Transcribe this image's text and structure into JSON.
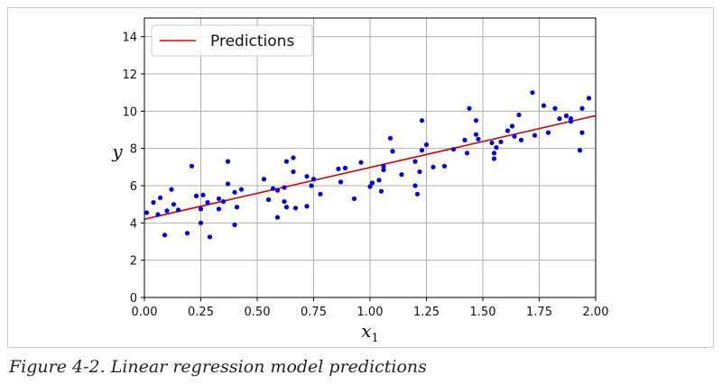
{
  "caption": "Figure 4-2. Linear regression model predictions",
  "chart_data": {
    "type": "scatter",
    "xlabel": "x",
    "xlabel_subscript": "1",
    "ylabel": "y",
    "xlim": [
      0,
      2
    ],
    "ylim": [
      0,
      15
    ],
    "xticks": [
      "0.00",
      "0.25",
      "0.50",
      "0.75",
      "1.00",
      "1.25",
      "1.50",
      "1.75",
      "2.00"
    ],
    "xtick_values": [
      0,
      0.25,
      0.5,
      0.75,
      1.0,
      1.25,
      1.5,
      1.75,
      2.0
    ],
    "yticks": [
      "0",
      "2",
      "4",
      "6",
      "8",
      "10",
      "12",
      "14"
    ],
    "ytick_values": [
      0,
      2,
      4,
      6,
      8,
      10,
      12,
      14
    ],
    "grid": true,
    "legend_position": "top-left",
    "series": [
      {
        "name": "",
        "kind": "scatter",
        "color": "#0000ee",
        "points": [
          [
            0.01,
            4.55
          ],
          [
            0.04,
            5.1
          ],
          [
            0.06,
            4.45
          ],
          [
            0.07,
            5.35
          ],
          [
            0.09,
            3.35
          ],
          [
            0.1,
            4.65
          ],
          [
            0.12,
            5.8
          ],
          [
            0.13,
            5.0
          ],
          [
            0.15,
            4.7
          ],
          [
            0.19,
            3.45
          ],
          [
            0.21,
            7.05
          ],
          [
            0.23,
            5.45
          ],
          [
            0.25,
            4.75
          ],
          [
            0.25,
            4.0
          ],
          [
            0.26,
            5.5
          ],
          [
            0.28,
            5.1
          ],
          [
            0.29,
            3.25
          ],
          [
            0.33,
            4.75
          ],
          [
            0.33,
            5.3
          ],
          [
            0.35,
            5.15
          ],
          [
            0.37,
            6.1
          ],
          [
            0.37,
            7.3
          ],
          [
            0.4,
            5.65
          ],
          [
            0.4,
            3.9
          ],
          [
            0.41,
            4.85
          ],
          [
            0.43,
            5.8
          ],
          [
            0.53,
            6.35
          ],
          [
            0.55,
            5.25
          ],
          [
            0.57,
            5.85
          ],
          [
            0.59,
            4.3
          ],
          [
            0.59,
            5.75
          ],
          [
            0.62,
            5.15
          ],
          [
            0.62,
            5.9
          ],
          [
            0.63,
            4.85
          ],
          [
            0.63,
            7.3
          ],
          [
            0.66,
            6.75
          ],
          [
            0.66,
            7.5
          ],
          [
            0.67,
            4.8
          ],
          [
            0.72,
            6.5
          ],
          [
            0.72,
            4.9
          ],
          [
            0.74,
            6.0
          ],
          [
            0.75,
            6.35
          ],
          [
            0.78,
            5.55
          ],
          [
            0.86,
            6.9
          ],
          [
            0.87,
            6.2
          ],
          [
            0.89,
            6.95
          ],
          [
            0.93,
            5.3
          ],
          [
            0.96,
            7.25
          ],
          [
            1.0,
            5.95
          ],
          [
            1.01,
            6.15
          ],
          [
            1.04,
            6.3
          ],
          [
            1.05,
            5.7
          ],
          [
            1.06,
            7.05
          ],
          [
            1.06,
            6.85
          ],
          [
            1.09,
            8.55
          ],
          [
            1.1,
            7.85
          ],
          [
            1.14,
            6.6
          ],
          [
            1.2,
            7.3
          ],
          [
            1.2,
            6.0
          ],
          [
            1.21,
            5.55
          ],
          [
            1.22,
            6.75
          ],
          [
            1.23,
            9.5
          ],
          [
            1.23,
            7.9
          ],
          [
            1.25,
            8.2
          ],
          [
            1.28,
            7.0
          ],
          [
            1.33,
            7.05
          ],
          [
            1.37,
            7.95
          ],
          [
            1.42,
            8.45
          ],
          [
            1.43,
            7.75
          ],
          [
            1.44,
            10.15
          ],
          [
            1.47,
            9.5
          ],
          [
            1.47,
            8.75
          ],
          [
            1.48,
            8.5
          ],
          [
            1.54,
            8.3
          ],
          [
            1.55,
            7.75
          ],
          [
            1.55,
            7.45
          ],
          [
            1.56,
            8.05
          ],
          [
            1.58,
            8.35
          ],
          [
            1.61,
            8.95
          ],
          [
            1.63,
            9.2
          ],
          [
            1.64,
            8.65
          ],
          [
            1.66,
            9.8
          ],
          [
            1.67,
            8.45
          ],
          [
            1.72,
            11.0
          ],
          [
            1.73,
            8.7
          ],
          [
            1.77,
            10.3
          ],
          [
            1.79,
            8.85
          ],
          [
            1.82,
            10.15
          ],
          [
            1.84,
            9.6
          ],
          [
            1.87,
            9.75
          ],
          [
            1.89,
            9.6
          ],
          [
            1.89,
            9.45
          ],
          [
            1.93,
            7.9
          ],
          [
            1.94,
            10.15
          ],
          [
            1.94,
            8.85
          ],
          [
            1.97,
            10.7
          ]
        ]
      },
      {
        "name": "Predictions",
        "kind": "line",
        "color": "#dd0000",
        "points": [
          [
            0,
            4.2
          ],
          [
            2,
            9.76
          ]
        ]
      }
    ]
  }
}
